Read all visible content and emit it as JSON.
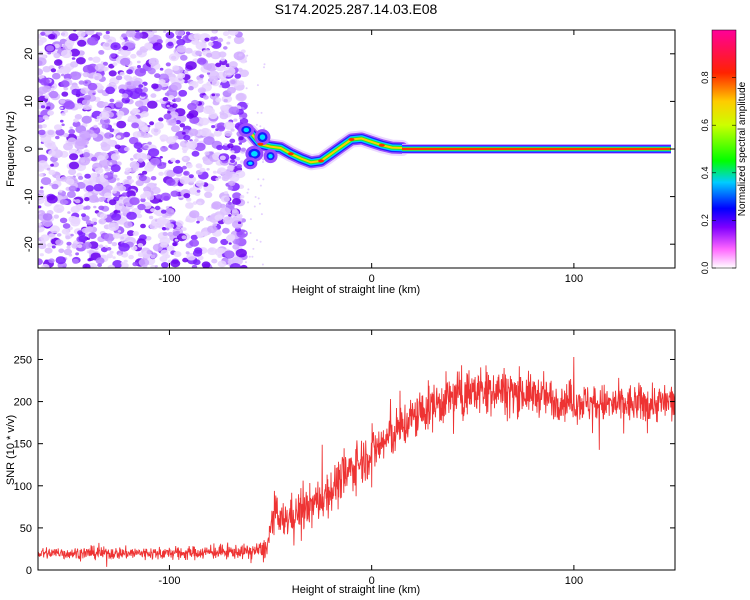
{
  "figure_title": "S174.2025.287.14.03.E08",
  "chart_data": [
    {
      "type": "heatmap",
      "title": "S174.2025.287.14.03.E08",
      "xlabel": "Height of straight line (km)",
      "ylabel": "Frequency (Hz)",
      "xlim": [
        -165,
        150
      ],
      "ylim": [
        -25,
        25
      ],
      "x_ticks": [
        -100,
        0,
        100
      ],
      "x_tick_labels": [
        "-100",
        "0",
        "100"
      ],
      "y_ticks": [
        -20,
        -10,
        0,
        10,
        20
      ],
      "y_tick_labels": [
        "-20",
        "-10",
        "0",
        "10",
        "20"
      ],
      "noise_region_x": [
        -165,
        -63
      ],
      "transition_region_x": [
        -63,
        15
      ],
      "tone_region_x": [
        15,
        148
      ],
      "tone_frequency_hz": 0,
      "transition_track": [
        {
          "x": -60,
          "y": 3.5
        },
        {
          "x": -55,
          "y": 1.0
        },
        {
          "x": -50,
          "y": 0.5
        },
        {
          "x": -45,
          "y": 0.2
        },
        {
          "x": -40,
          "y": -1.0
        },
        {
          "x": -35,
          "y": -2.0
        },
        {
          "x": -30,
          "y": -2.8
        },
        {
          "x": -25,
          "y": -2.5
        },
        {
          "x": -20,
          "y": -1.0
        },
        {
          "x": -15,
          "y": 0.5
        },
        {
          "x": -10,
          "y": 2.0
        },
        {
          "x": -5,
          "y": 2.2
        },
        {
          "x": 0,
          "y": 1.5
        },
        {
          "x": 5,
          "y": 0.8
        },
        {
          "x": 10,
          "y": 0.3
        },
        {
          "x": 15,
          "y": 0.2
        }
      ],
      "colorbar": {
        "label": "Normalized spectral amplitude",
        "range": [
          0.0,
          1.0
        ],
        "ticks": [
          0.0,
          0.2,
          0.4,
          0.6,
          0.8
        ],
        "tick_labels": [
          "0.0",
          "0.2",
          "0.4",
          "0.6",
          "0.8"
        ],
        "colors": [
          "#ffffff",
          "#8000ff",
          "#0000ff",
          "#00ffff",
          "#00ff00",
          "#ffff00",
          "#ff8000",
          "#ff0000",
          "#ff00ff"
        ]
      }
    },
    {
      "type": "line",
      "title": "",
      "xlabel": "Height of straight line (km)",
      "ylabel": "SNR (10 * v/v)",
      "xlim": [
        -165,
        150
      ],
      "ylim": [
        0,
        285
      ],
      "x_ticks": [
        -100,
        0,
        100
      ],
      "x_tick_labels": [
        "-100",
        "0",
        "100"
      ],
      "y_ticks": [
        0,
        50,
        100,
        150,
        200,
        250
      ],
      "y_tick_labels": [
        "0",
        "50",
        "100",
        "150",
        "200",
        "250"
      ],
      "series": [
        {
          "name": "SNR",
          "color": "#ee3333",
          "envelope": {
            "x": [
              -165,
              -100,
              -60,
              -52,
              -48,
              -45,
              -40,
              -30,
              -20,
              -10,
              0,
              10,
              20,
              30,
              40,
              50,
              60,
              70,
              80,
              90,
              100,
              110,
              120,
              130,
              140,
              150
            ],
            "center": [
              20,
              20,
              22,
              25,
              70,
              55,
              65,
              75,
              95,
              120,
              140,
              160,
              180,
              195,
              205,
              212,
              215,
              212,
              208,
              203,
              200,
              198,
              196,
              197,
              198,
              200
            ],
            "spread": [
              8,
              8,
              9,
              12,
              25,
              25,
              25,
              28,
              30,
              30,
              30,
              30,
              30,
              30,
              30,
              30,
              30,
              28,
              25,
              25,
              25,
              25,
              25,
              25,
              25,
              25
            ]
          }
        }
      ]
    }
  ]
}
